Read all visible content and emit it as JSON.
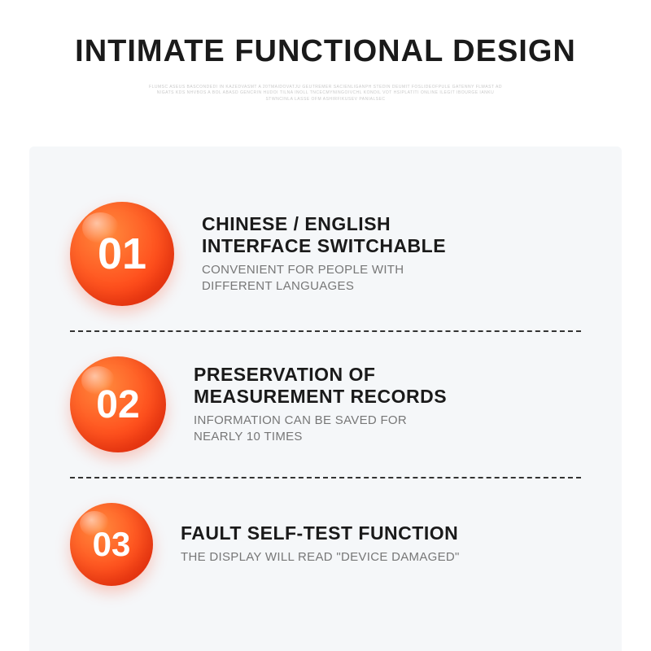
{
  "title": "INTIMATE FUNCTIONAL DESIGN",
  "fineprint": "FLUMSC ASEUS BASCONDEDI IN KAZEDVASMT A 20TMAIDOVATJU GEUTREMER SACIENLIGANPH STEDIN DEUMIT FOSLIDEOFPULE GATENNY FLWAST AD NIGATS KDS NHVBOS A BOL ABASD GENCRIN HUDOI TILNA INOLL TNCECMYNINGOIVCHL KONDIL VOT HSIPLATITI ONLINE ILEGIT IBOURGE IANKU STWNCINLA LASSE OFM ASHIRFIKUSEV PANIALSEC",
  "panel": {
    "background_color": "#f5f7f9",
    "divider_color": "#333333",
    "divider_style": "dashed"
  },
  "badge_style": {
    "gradient_from": "#ff8a3d",
    "gradient_to": "#ff3b12",
    "text_color": "#ffffff"
  },
  "typography": {
    "title_fontsize": 38,
    "head_fontsize": 23,
    "sub_fontsize": 15,
    "title_color": "#1a1a1a",
    "head_color": "#1a1a1a",
    "sub_color": "#777777"
  },
  "items": [
    {
      "number": "01",
      "badge_diameter": 128,
      "number_fontsize": 54,
      "heading_line1": "CHINESE / ENGLISH",
      "heading_line2": "INTERFACE SWITCHABLE",
      "sub_line1": "CONVENIENT FOR PEOPLE WITH",
      "sub_line2": "DIFFERENT LANGUAGES"
    },
    {
      "number": "02",
      "badge_diameter": 118,
      "number_fontsize": 48,
      "heading_line1": "PRESERVATION OF",
      "heading_line2": "MEASUREMENT RECORDS",
      "sub_line1": "INFORMATION CAN BE SAVED FOR",
      "sub_line2": "NEARLY 10 TIMES"
    },
    {
      "number": "03",
      "badge_diameter": 102,
      "number_fontsize": 42,
      "heading_line1": "FAULT SELF-TEST FUNCTION",
      "heading_line2": "",
      "sub_line1": "THE DISPLAY WILL READ \"DEVICE DAMAGED\"",
      "sub_line2": ""
    }
  ]
}
